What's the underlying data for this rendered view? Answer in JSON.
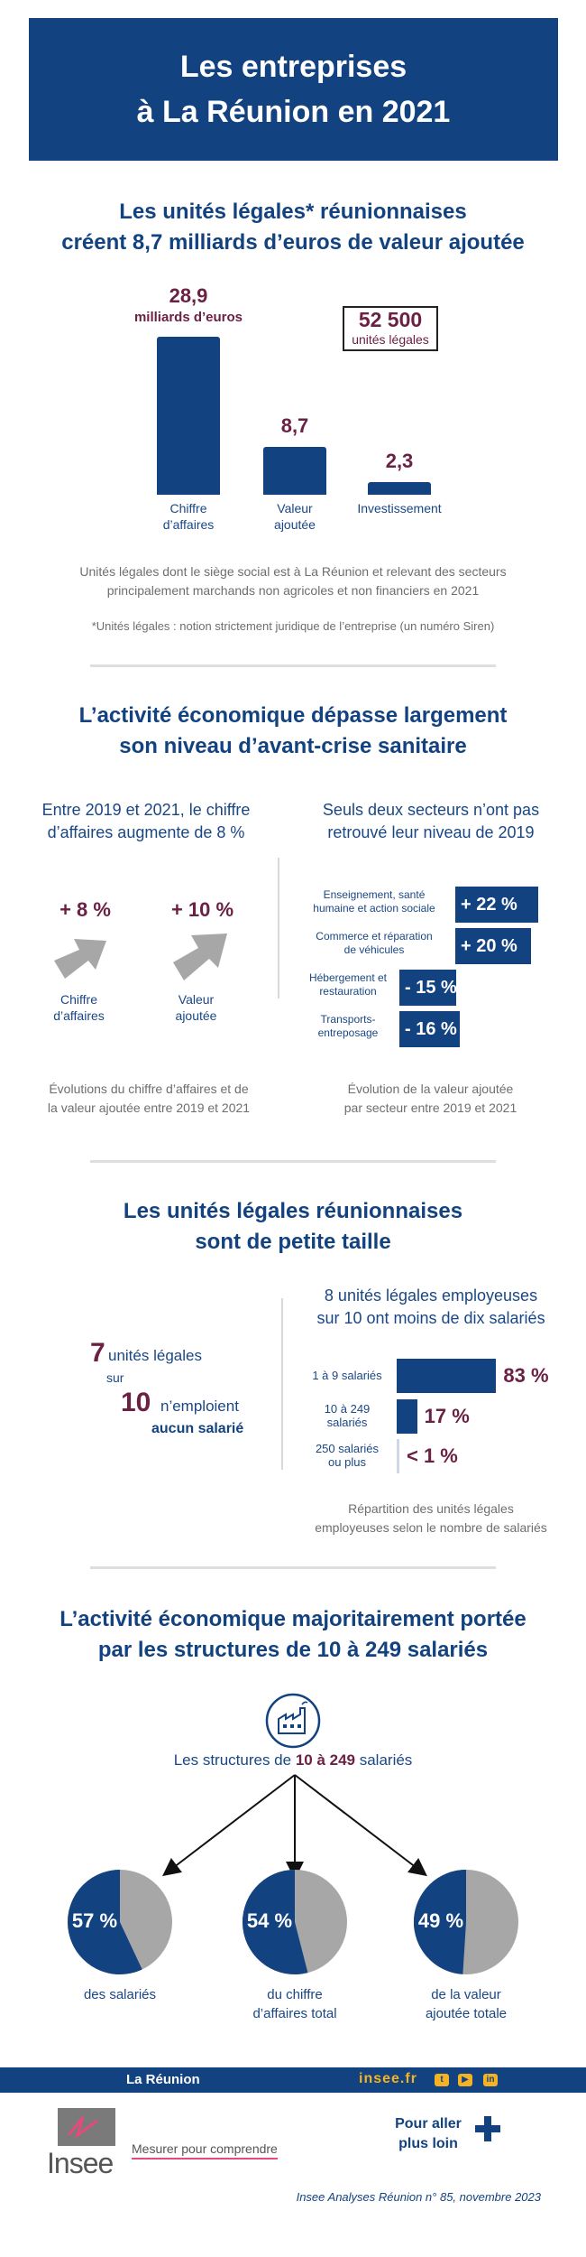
{
  "header": {
    "line1": "Les entreprises",
    "line2": "à La Réunion en 2021"
  },
  "s1": {
    "title1": "Les unités légales* réunionnaises",
    "title2": "créent 8,7 milliards d’euros de valeur ajoutée",
    "box_value": "52 500",
    "box_label": "unités légales",
    "bars": [
      {
        "value": "28,9",
        "unit": "milliards d’euros",
        "label1": "Chiffre",
        "label2": "d’affaires",
        "num": 28.9
      },
      {
        "value": "8,7",
        "unit": "",
        "label1": "Valeur",
        "label2": "ajoutée",
        "num": 8.7
      },
      {
        "value": "2,3",
        "unit": "",
        "label1": "Investissement",
        "label2": "",
        "num": 2.3
      }
    ],
    "note1": "Unités légales dont le siège social est à La Réunion et relevant des secteurs",
    "note2": "principalement marchands non agricoles et non financiers en 2021",
    "footnote": "*Unités légales : notion strictement juridique de l’entreprise (un numéro Siren)"
  },
  "s2": {
    "title1": "L’activité économique dépasse largement",
    "title2": "son niveau d’avant-crise sanitaire",
    "left_sub1": "Entre 2019 et 2021, le chiffre",
    "left_sub2": "d’affaires augmente de 8 %",
    "right_sub1": "Seuls deux secteurs n’ont pas",
    "right_sub2": "retrouvé leur niveau de 2019",
    "arrows": [
      {
        "value": "+ 8 %",
        "label1": "Chiffre",
        "label2": "d’affaires"
      },
      {
        "value": "+ 10 %",
        "label1": "Valeur",
        "label2": "ajoutée"
      }
    ],
    "sectors": [
      {
        "label1": "Enseignement, santé",
        "label2": "humaine et action sociale",
        "value": "+ 22 %",
        "num": 22
      },
      {
        "label1": "Commerce et réparation",
        "label2": "de véhicules",
        "value": "+ 20 %",
        "num": 20
      },
      {
        "label1": "Hébergement et",
        "label2": "restauration",
        "value": "- 15 %",
        "num": -15
      },
      {
        "label1": "Transports-",
        "label2": "entreposage",
        "value": "- 16 %",
        "num": -16
      }
    ],
    "left_note1": "Évolutions du chiffre d’affaires et de",
    "left_note2": "la valeur ajoutée entre 2019 et 2021",
    "right_note1": "Évolution de la valeur ajoutée",
    "right_note2": "par secteur entre 2019 et 2021"
  },
  "s3": {
    "title1": "Les unités légales réunionnaises",
    "title2": "sont de petite taille",
    "left_num1": "7",
    "left_text1": "unités légales",
    "left_text2": "sur",
    "left_num2": "10",
    "left_text3": "n’emploient",
    "left_text4": "aucun salarié",
    "right_sub1": "8 unités légales employeuses",
    "right_sub2": "sur 10 ont moins de dix salariés",
    "sizes": [
      {
        "label1": "1 à 9 salariés",
        "label2": "",
        "value": "83 %",
        "num": 83
      },
      {
        "label1": "10 à 249",
        "label2": "salariés",
        "value": "17 %",
        "num": 17
      },
      {
        "label1": "250 salariés",
        "label2": "ou plus",
        "value": "< 1 %",
        "num": 0.5
      }
    ],
    "note1": "Répartition des unités légales",
    "note2": "employeuses selon le nombre de salariés"
  },
  "s4": {
    "title1": "L’activité économique majoritairement portée",
    "title2": "par les structures de 10 à 249 salariés",
    "intro_pre": "Les structures de ",
    "intro_bold": "10 à 249",
    "intro_post": " salariés",
    "pies": [
      {
        "value": "57 %",
        "num": 57,
        "label1": "des salariés",
        "label2": ""
      },
      {
        "value": "54 %",
        "num": 54,
        "label1": "du chiffre",
        "label2": "d’affaires total"
      },
      {
        "value": "49 %",
        "num": 49,
        "label1": "de la valeur",
        "label2": "ajoutée totale"
      }
    ]
  },
  "footer": {
    "region": "La Réunion",
    "site": "insee.fr",
    "logo": "Insee",
    "tagline": "Mesurer pour comprendre",
    "more1": "Pour aller",
    "more2": "plus loin",
    "reference": "Insee Analyses Réunion n° 85, novembre 2023"
  },
  "colors": {
    "navy": "#12427f",
    "plum": "#6b2144",
    "grey": "#a7a7a7",
    "accent": "#f5b324"
  },
  "icons": [
    "factory-icon",
    "arrow-up-right-icon",
    "plus-icon",
    "twitter-icon",
    "youtube-icon",
    "linkedin-icon"
  ]
}
